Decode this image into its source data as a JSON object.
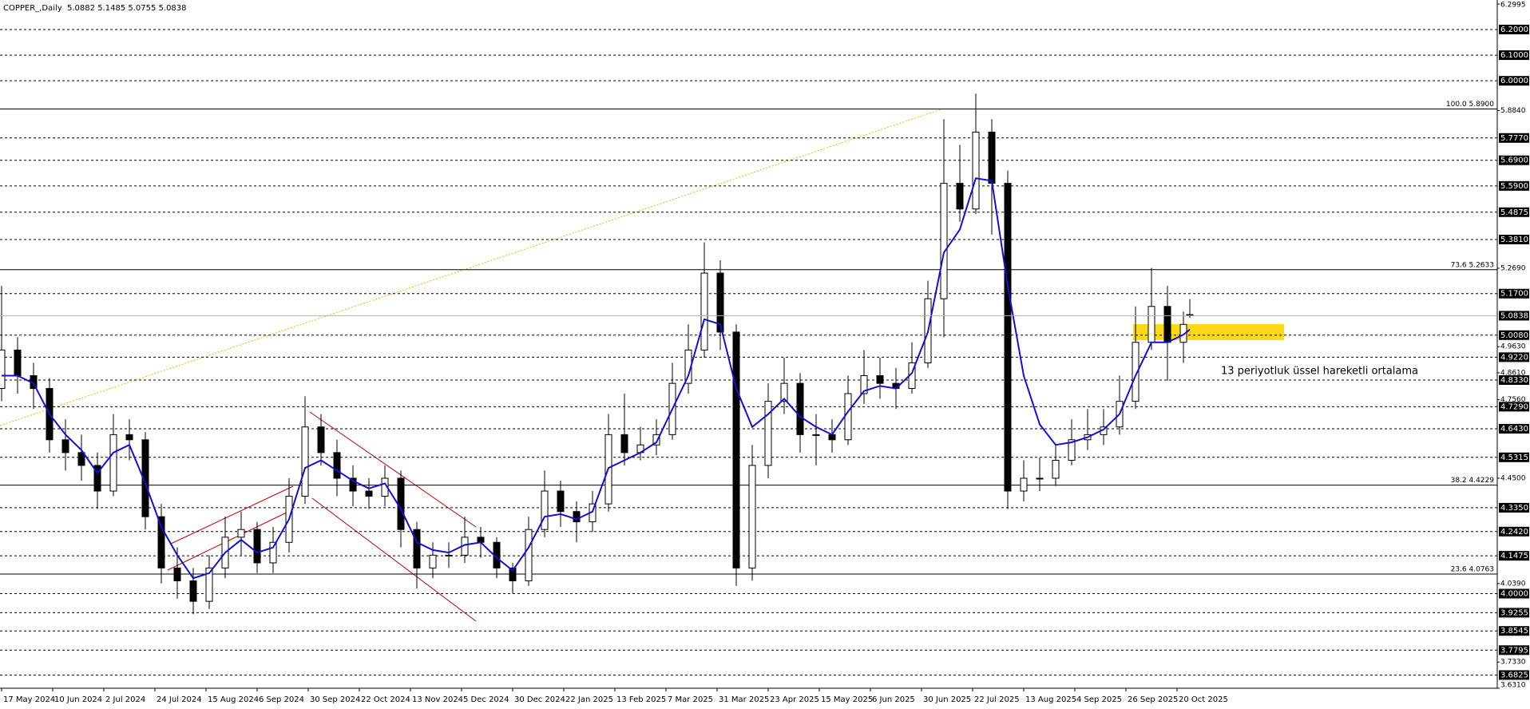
{
  "chart_data": {
    "type": "candlestick",
    "title": "COPPER_,Daily  5.0882 5.1485 5.0755 5.0838",
    "x": [
      0,
      5,
      10,
      15,
      20,
      25,
      30,
      35,
      40,
      45,
      50,
      55,
      60,
      65,
      70,
      75,
      80,
      85,
      90,
      95,
      100,
      105,
      110,
      115,
      120,
      125,
      130,
      135,
      140,
      145,
      150,
      155,
      160,
      165,
      170,
      175,
      180,
      185,
      190,
      195,
      200,
      205,
      210,
      215,
      220,
      225,
      230,
      235,
      240,
      245,
      250,
      255,
      260,
      265,
      270,
      275,
      280,
      285,
      290,
      295,
      300,
      305,
      310,
      315,
      320,
      325,
      330,
      335,
      340,
      345,
      350,
      355,
      360,
      365,
      370,
      372
    ],
    "open": [
      4.8,
      4.95,
      4.85,
      4.8,
      4.6,
      4.55,
      4.5,
      4.4,
      4.62,
      4.6,
      4.3,
      4.1,
      4.05,
      3.97,
      4.1,
      4.22,
      4.25,
      4.12,
      4.2,
      4.38,
      4.65,
      4.55,
      4.45,
      4.4,
      4.38,
      4.45,
      4.25,
      4.1,
      4.15,
      4.15,
      4.22,
      4.2,
      4.1,
      4.05,
      4.25,
      4.4,
      4.32,
      4.28,
      4.35,
      4.62,
      4.55,
      4.58,
      4.62,
      4.82,
      4.95,
      5.25,
      5.02,
      4.1,
      4.5,
      4.75,
      4.82,
      4.62,
      4.62,
      4.6,
      4.78,
      4.85,
      4.82,
      4.8,
      4.9,
      5.15,
      5.6,
      5.5,
      5.8,
      5.6,
      4.4,
      4.45,
      4.45,
      4.52,
      4.6,
      4.62,
      4.65,
      4.75,
      4.98,
      5.12,
      4.98,
      5.0882
    ],
    "high": [
      5.2,
      5.0,
      4.9,
      4.84,
      4.68,
      4.62,
      4.55,
      4.7,
      4.68,
      4.63,
      4.35,
      4.18,
      4.1,
      4.15,
      4.3,
      4.32,
      4.28,
      4.26,
      4.45,
      4.77,
      4.7,
      4.6,
      4.5,
      4.45,
      4.5,
      4.48,
      4.28,
      4.2,
      4.2,
      4.3,
      4.26,
      4.22,
      4.12,
      4.3,
      4.48,
      4.44,
      4.36,
      4.4,
      4.7,
      4.78,
      4.65,
      4.68,
      4.9,
      5.05,
      5.37,
      5.3,
      5.05,
      4.58,
      4.82,
      4.92,
      4.86,
      4.7,
      4.68,
      4.85,
      4.95,
      4.92,
      4.88,
      4.98,
      5.22,
      5.85,
      5.75,
      5.95,
      5.85,
      5.65,
      4.52,
      4.53,
      4.58,
      4.68,
      4.72,
      4.72,
      4.85,
      5.12,
      5.27,
      5.2,
      5.1,
      5.1485
    ],
    "low": [
      4.75,
      4.78,
      4.72,
      4.55,
      4.48,
      4.44,
      4.33,
      4.38,
      4.52,
      4.25,
      4.04,
      3.98,
      3.92,
      3.94,
      4.06,
      4.15,
      4.08,
      4.08,
      4.16,
      4.35,
      4.5,
      4.38,
      4.34,
      4.33,
      4.34,
      4.18,
      4.02,
      4.06,
      4.1,
      4.12,
      4.14,
      4.06,
      4.0,
      4.03,
      4.22,
      4.26,
      4.2,
      4.24,
      4.32,
      4.5,
      4.52,
      4.54,
      4.6,
      4.78,
      4.92,
      4.95,
      4.03,
      4.05,
      4.45,
      4.7,
      4.55,
      4.5,
      4.55,
      4.58,
      4.74,
      4.76,
      4.72,
      4.78,
      4.88,
      5.0,
      5.45,
      5.48,
      5.4,
      4.33,
      4.36,
      4.4,
      4.42,
      4.5,
      4.56,
      4.58,
      4.62,
      4.72,
      4.95,
      4.83,
      4.9,
      5.0755
    ],
    "close": [
      4.95,
      4.85,
      4.8,
      4.6,
      4.55,
      4.5,
      4.4,
      4.62,
      4.6,
      4.3,
      4.1,
      4.05,
      3.97,
      4.1,
      4.22,
      4.25,
      4.12,
      4.2,
      4.38,
      4.65,
      4.55,
      4.45,
      4.4,
      4.38,
      4.45,
      4.25,
      4.1,
      4.15,
      4.15,
      4.22,
      4.2,
      4.1,
      4.05,
      4.25,
      4.4,
      4.32,
      4.28,
      4.35,
      4.62,
      4.55,
      4.58,
      4.62,
      4.82,
      4.95,
      5.25,
      5.02,
      4.1,
      4.5,
      4.75,
      4.82,
      4.62,
      4.62,
      4.6,
      4.78,
      4.85,
      4.82,
      4.8,
      4.9,
      5.15,
      5.6,
      5.5,
      5.8,
      5.6,
      4.4,
      4.45,
      4.45,
      4.52,
      4.6,
      4.62,
      4.65,
      4.75,
      4.98,
      5.12,
      4.98,
      5.05,
      5.0838
    ],
    "ema": {
      "color": "#1010d8",
      "values": [
        4.85,
        4.85,
        4.82,
        4.7,
        4.62,
        4.56,
        4.47,
        4.55,
        4.58,
        4.43,
        4.26,
        4.15,
        4.06,
        4.08,
        4.16,
        4.21,
        4.16,
        4.18,
        4.29,
        4.49,
        4.52,
        4.48,
        4.44,
        4.41,
        4.43,
        4.33,
        4.2,
        4.17,
        4.16,
        4.19,
        4.2,
        4.14,
        4.09,
        4.18,
        4.3,
        4.31,
        4.29,
        4.32,
        4.49,
        4.52,
        4.55,
        4.59,
        4.72,
        4.85,
        5.07,
        5.05,
        4.8,
        4.65,
        4.7,
        4.76,
        4.69,
        4.65,
        4.62,
        4.71,
        4.79,
        4.81,
        4.8,
        4.86,
        5.02,
        5.33,
        5.42,
        5.62,
        5.61,
        5.2,
        4.85,
        4.66,
        4.58,
        4.59,
        4.61,
        4.64,
        4.7,
        4.85,
        4.98,
        4.98,
        5.01,
        5.03
      ]
    },
    "up_color": "#ffffff",
    "down_color": "#000000",
    "xlim": [
      -0.5,
      468.25
    ],
    "ylim": [
      3.631,
      6.2995
    ],
    "xticks": [
      {
        "value": 0,
        "label": "17 May 2024"
      },
      {
        "value": 16,
        "label": "10 Jun 2024"
      },
      {
        "value": 32,
        "label": "2 Jul 2024"
      },
      {
        "value": 48,
        "label": "24 Jul 2024"
      },
      {
        "value": 64,
        "label": "15 Aug 2024"
      },
      {
        "value": 80,
        "label": "6 Sep 2024"
      },
      {
        "value": 96,
        "label": "30 Sep 2024"
      },
      {
        "value": 112,
        "label": "22 Oct 2024"
      },
      {
        "value": 128,
        "label": "13 Nov 2024"
      },
      {
        "value": 144,
        "label": "5 Dec 2024"
      },
      {
        "value": 160,
        "label": "30 Dec 2024"
      },
      {
        "value": 176,
        "label": "22 Jan 2025"
      },
      {
        "value": 192,
        "label": "13 Feb 2025"
      },
      {
        "value": 208,
        "label": "7 Mar 2025"
      },
      {
        "value": 224,
        "label": "31 Mar 2025"
      },
      {
        "value": 240,
        "label": "23 Apr 2025"
      },
      {
        "value": 256,
        "label": "15 May 2025"
      },
      {
        "value": 272,
        "label": "6 Jun 2025"
      },
      {
        "value": 288,
        "label": "30 Jun 2025"
      },
      {
        "value": 304,
        "label": "22 Jul 2025"
      },
      {
        "value": 320,
        "label": "13 Aug 2025"
      },
      {
        "value": 336,
        "label": "4 Sep 2025"
      },
      {
        "value": 352,
        "label": "26 Sep 2025"
      },
      {
        "value": 368,
        "label": "20 Oct 2025"
      }
    ],
    "yticks": [
      {
        "value": 6.2995,
        "label": "6.2995"
      },
      {
        "value": 5.884,
        "label": "5.8840"
      },
      {
        "value": 5.269,
        "label": "5.2690"
      },
      {
        "value": 4.963,
        "label": "4.9630"
      },
      {
        "value": 4.861,
        "label": "4.8610"
      },
      {
        "value": 4.756,
        "label": "4.7560"
      },
      {
        "value": 4.45,
        "label": "4.4500"
      },
      {
        "value": 4.039,
        "label": "4.0390"
      },
      {
        "value": 3.733,
        "label": "3.7330"
      },
      {
        "value": 3.631,
        "label": "3.6310"
      }
    ],
    "levels": [
      {
        "value": 6.2,
        "label": "6.2000"
      },
      {
        "value": 6.1,
        "label": "6.1000"
      },
      {
        "value": 6.0,
        "label": "6.0000"
      },
      {
        "value": 5.777,
        "label": "5.7770"
      },
      {
        "value": 5.69,
        "label": "5.6900"
      },
      {
        "value": 5.59,
        "label": "5.5900"
      },
      {
        "value": 5.4875,
        "label": "5.4875"
      },
      {
        "value": 5.381,
        "label": "5.3810"
      },
      {
        "value": 5.17,
        "label": "5.1700"
      },
      {
        "value": 5.008,
        "label": "5.0080"
      },
      {
        "value": 4.922,
        "label": "4.9220"
      },
      {
        "value": 4.833,
        "label": "4.8330"
      },
      {
        "value": 4.729,
        "label": "4.7290"
      },
      {
        "value": 4.643,
        "label": "4.6430"
      },
      {
        "value": 4.5315,
        "label": "4.5315"
      },
      {
        "value": 4.335,
        "label": "4.3350"
      },
      {
        "value": 4.242,
        "label": "4.2420"
      },
      {
        "value": 4.1475,
        "label": "4.1475"
      },
      {
        "value": 4.0,
        "label": "4.0000"
      },
      {
        "value": 3.9255,
        "label": "3.9255"
      },
      {
        "value": 3.8545,
        "label": "3.8545"
      },
      {
        "value": 3.7795,
        "label": "3.7795"
      },
      {
        "value": 3.6825,
        "label": "3.6825"
      }
    ],
    "fib_levels": [
      {
        "value": 5.89,
        "label": "100.0 5.8900"
      },
      {
        "value": 5.2633,
        "label": "73.6 5.2633"
      },
      {
        "value": 4.4229,
        "label": "38.2 4.4229"
      },
      {
        "value": 4.0763,
        "label": "23.6 4.0763"
      }
    ],
    "annotation": "13 periyotluk üssel hareketli ortalama",
    "annotation_color": "#2a2ae0"
  }
}
